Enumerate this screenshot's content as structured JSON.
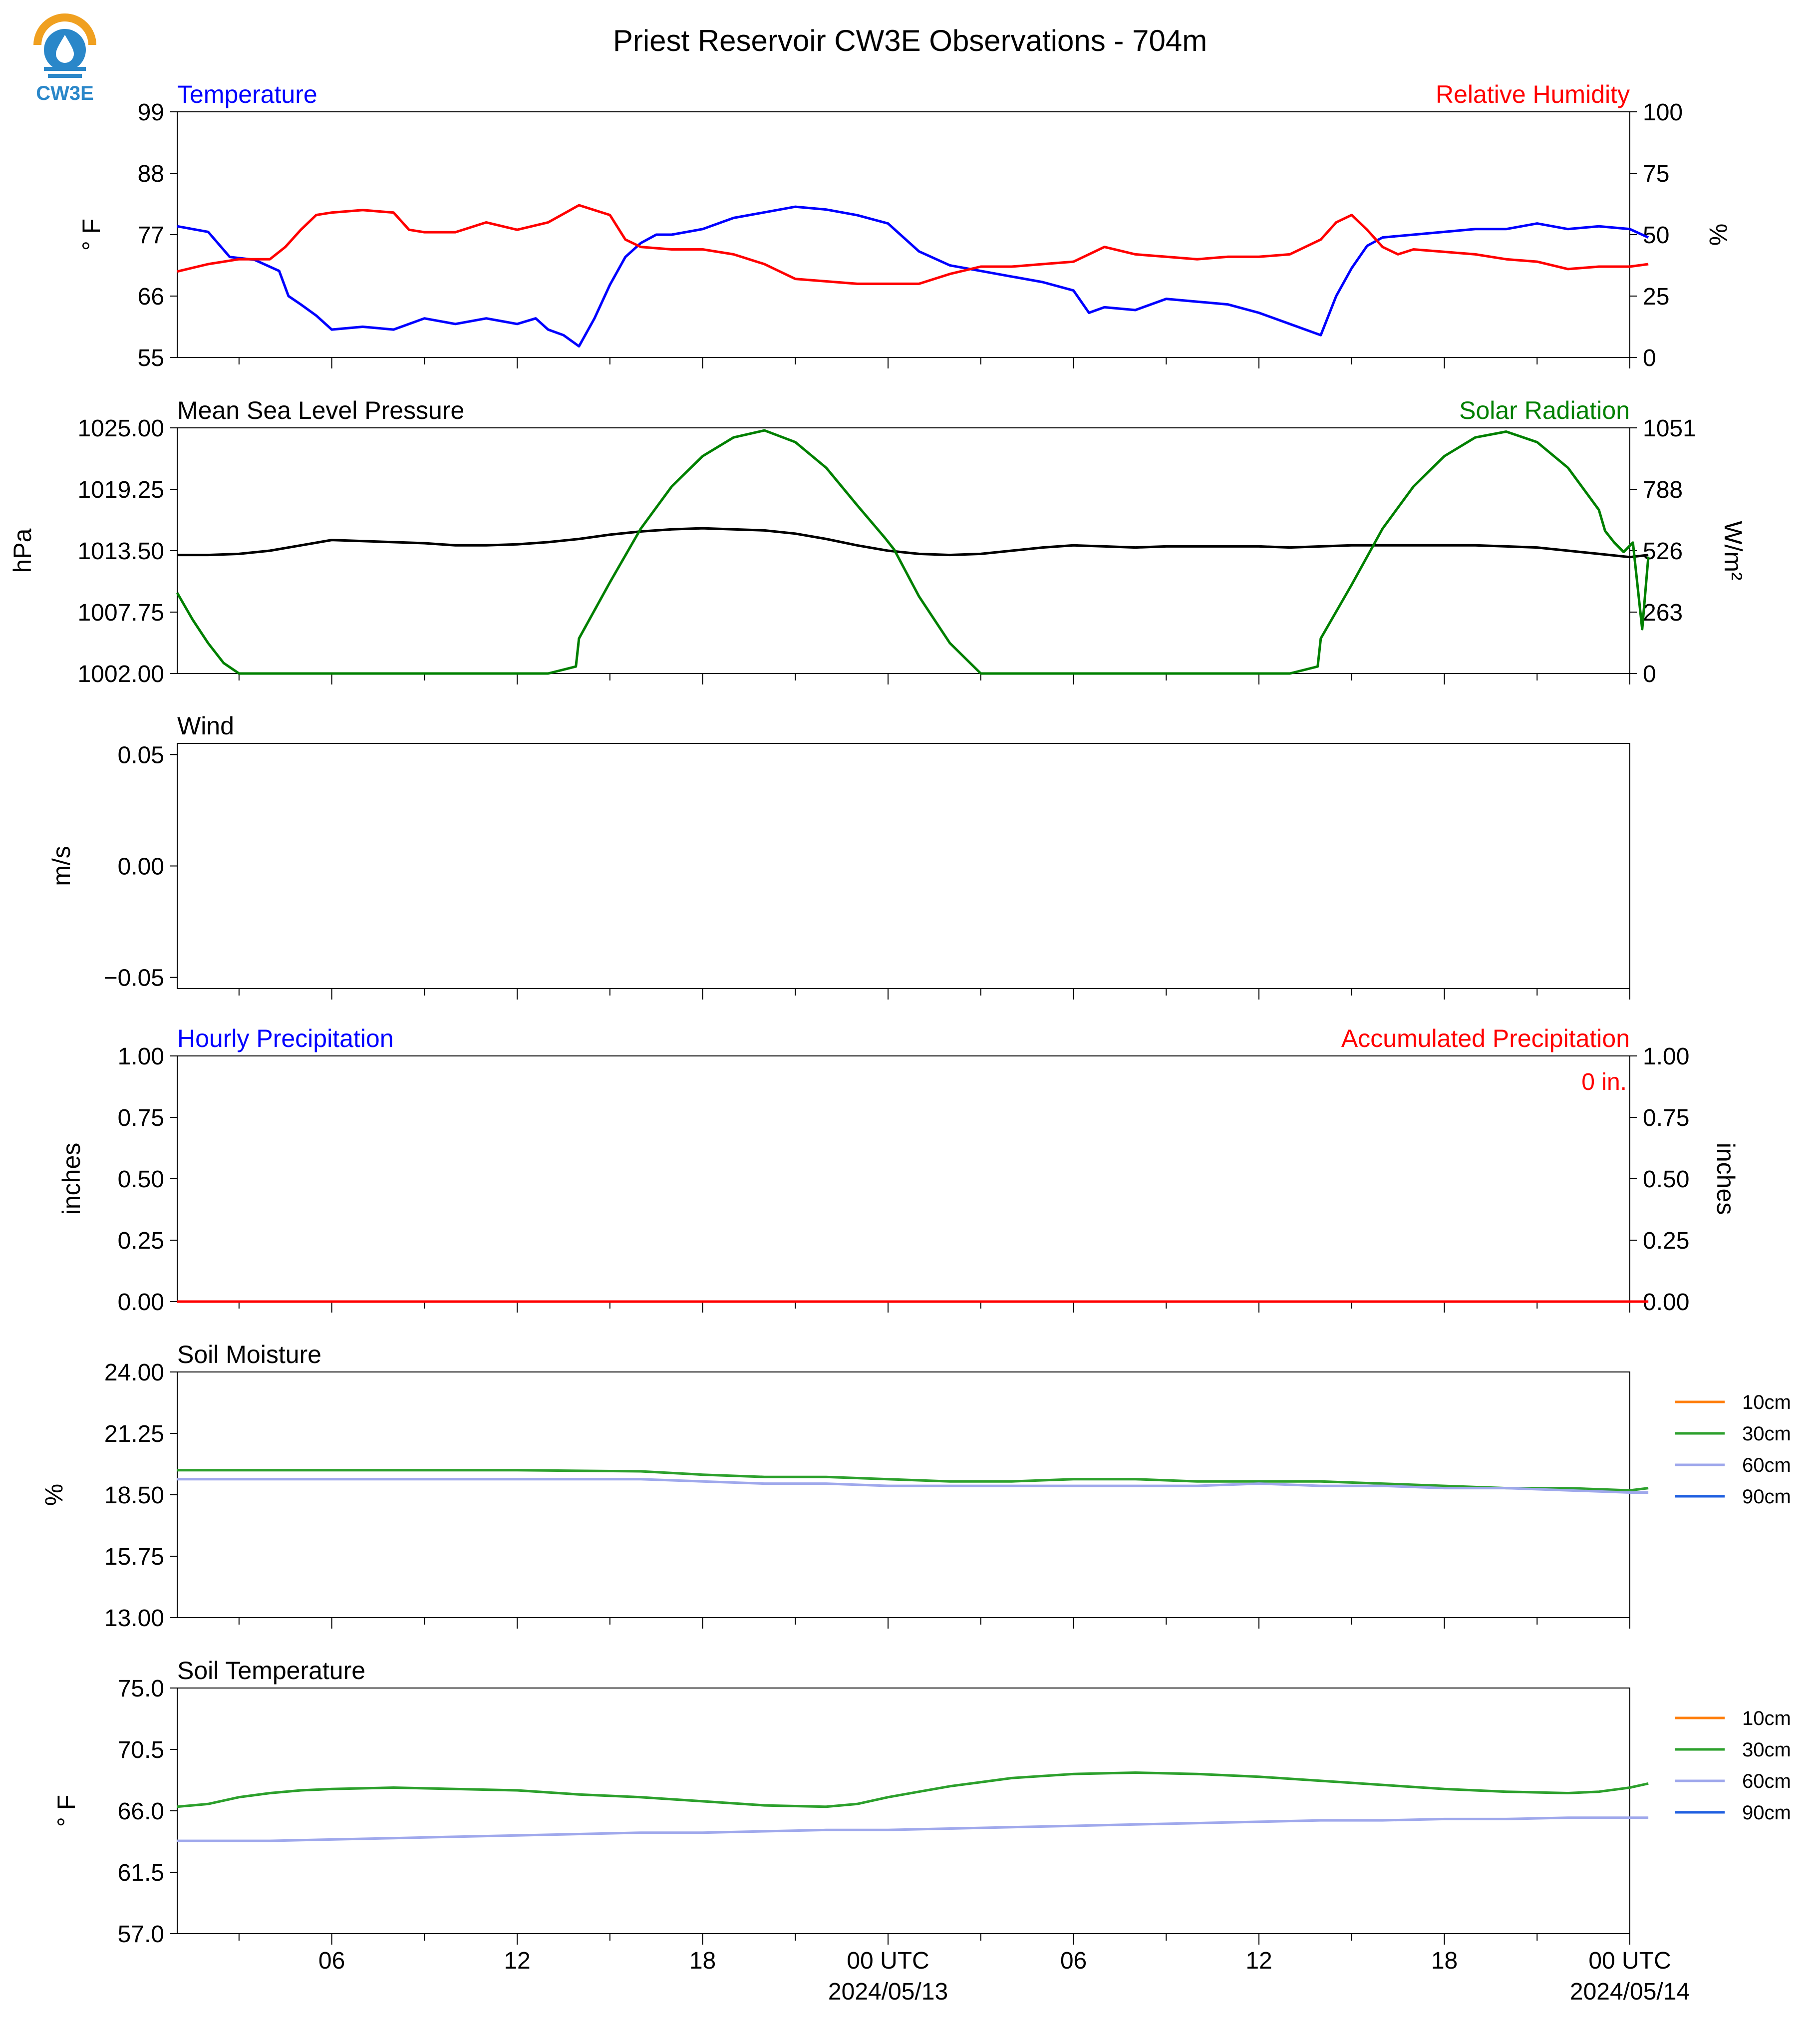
{
  "header": {
    "title": "Priest Reservoir CW3E Observations - 704m",
    "logo_text": "CW3E"
  },
  "colors": {
    "temperature": "#0000ff",
    "humidity": "#ff0000",
    "pressure": "#000000",
    "solar": "#008000",
    "soil_10cm": "#ff7f0e",
    "soil_30cm": "#2ca02c",
    "soil_60cm": "#9fa8ec",
    "soil_90cm": "#1f5fe0",
    "logo_orange": "#f0a020",
    "logo_blue": "#2a87c9"
  },
  "x_axis": {
    "hour_ticks": [
      6,
      12,
      18,
      24,
      30,
      36,
      42,
      48
    ],
    "tick_labels": [
      "06",
      "12",
      "18",
      "00 UTC",
      "06",
      "12",
      "18",
      "00 UTC"
    ],
    "date_labels": [
      "2024/05/13",
      "2024/05/14"
    ],
    "range_hours": [
      1,
      48
    ]
  },
  "chart_data": [
    {
      "type": "line",
      "title_left": "Temperature",
      "title_right": "Relative Humidity",
      "ylabel_left": "° F",
      "ylabel_right": "%",
      "ylim_left": [
        55,
        99
      ],
      "ylim_right": [
        0,
        100
      ],
      "yticks_left": [
        "99",
        "88",
        "77",
        "66",
        "55"
      ],
      "yticks_right": [
        "100",
        "75",
        "50",
        "25",
        "0"
      ],
      "series": [
        {
          "axis": "left",
          "x": [
            1,
            2,
            2.7,
            3.5,
            4.3,
            4.6,
            5,
            5.5,
            6,
            7,
            8,
            9,
            10,
            11,
            12,
            12.6,
            13,
            13.5,
            14,
            14.5,
            15,
            15.5,
            16,
            16.5,
            17,
            18,
            19,
            20,
            21,
            22,
            23,
            24,
            25,
            26,
            27,
            28,
            29,
            30,
            30.5,
            31,
            32,
            33,
            34,
            35,
            36,
            37,
            38,
            38.5,
            39,
            39.5,
            40,
            41,
            42,
            43,
            44,
            45,
            46,
            47,
            48,
            48.6
          ],
          "y": [
            78.5,
            77.5,
            73,
            72.5,
            70.5,
            66,
            64.5,
            62.5,
            60,
            60.5,
            60,
            62,
            61,
            62,
            61,
            62,
            60,
            59,
            57,
            62,
            68,
            73,
            75.5,
            77,
            77,
            78,
            80,
            81,
            82,
            81.5,
            80.5,
            79,
            74,
            71.5,
            70.5,
            69.5,
            68.5,
            67,
            63,
            64,
            63.5,
            65.5,
            65,
            64.5,
            63,
            61,
            59,
            66,
            71,
            75,
            76.5,
            77,
            77.5,
            78,
            78,
            79,
            78,
            78.5,
            78,
            76.5
          ]
        },
        {
          "axis": "right",
          "x": [
            1,
            2,
            3,
            4,
            4.5,
            5,
            5.5,
            6,
            7,
            8,
            8.5,
            9,
            10,
            11,
            12,
            13,
            14,
            15,
            15.5,
            16,
            17,
            18,
            19,
            20,
            21,
            22,
            23,
            24,
            25,
            26,
            27,
            28,
            29,
            30,
            30.5,
            31,
            32,
            33,
            34,
            35,
            36,
            37,
            38,
            38.5,
            39,
            39.5,
            40,
            40.5,
            41,
            42,
            43,
            44,
            45,
            46,
            47,
            48,
            48.6
          ],
          "y": [
            35,
            38,
            40,
            40,
            45,
            52,
            58,
            59,
            60,
            59,
            52,
            51,
            51,
            55,
            52,
            55,
            62,
            58,
            48,
            45,
            44,
            44,
            42,
            38,
            32,
            31,
            30,
            30,
            30,
            34,
            37,
            37,
            38,
            39,
            42,
            45,
            42,
            41,
            40,
            41,
            41,
            42,
            48,
            55,
            58,
            52,
            45,
            42,
            44,
            43,
            42,
            40,
            39,
            36,
            37,
            37,
            38
          ]
        }
      ]
    },
    {
      "type": "line",
      "title_left": "Mean Sea Level Pressure",
      "title_right": "Solar Radiation",
      "ylabel_left": "hPa",
      "ylabel_right": "W/m²",
      "ylim_left": [
        1002.0,
        1025.0
      ],
      "ylim_right": [
        0,
        1051
      ],
      "yticks_left": [
        "1025.00",
        "1019.25",
        "1013.50",
        "1007.75",
        "1002.00"
      ],
      "yticks_right": [
        "1051",
        "788",
        "526",
        "263",
        "0"
      ],
      "series": [
        {
          "axis": "left",
          "x": [
            1,
            2,
            3,
            4,
            5,
            6,
            7,
            8,
            9,
            10,
            11,
            12,
            13,
            14,
            15,
            16,
            17,
            18,
            19,
            20,
            21,
            22,
            23,
            24,
            25,
            26,
            27,
            28,
            29,
            30,
            31,
            32,
            33,
            34,
            35,
            36,
            37,
            38,
            39,
            40,
            41,
            42,
            43,
            44,
            45,
            46,
            47,
            48,
            48.6
          ],
          "y": [
            1013.1,
            1013.1,
            1013.2,
            1013.5,
            1014.0,
            1014.5,
            1014.4,
            1014.3,
            1014.2,
            1014.0,
            1014.0,
            1014.1,
            1014.3,
            1014.6,
            1015.0,
            1015.3,
            1015.5,
            1015.6,
            1015.5,
            1015.4,
            1015.1,
            1014.6,
            1014.0,
            1013.5,
            1013.2,
            1013.1,
            1013.2,
            1013.5,
            1013.8,
            1014.0,
            1013.9,
            1013.8,
            1013.9,
            1013.9,
            1013.9,
            1013.9,
            1013.8,
            1013.9,
            1014.0,
            1014.0,
            1014.0,
            1014.0,
            1014.0,
            1013.9,
            1013.8,
            1013.5,
            1013.2,
            1012.9,
            1013.1
          ]
        },
        {
          "axis": "right",
          "x": [
            1,
            1.5,
            2,
            2.5,
            3,
            4,
            6,
            8,
            10,
            12,
            13,
            13.9,
            14,
            15,
            16,
            17,
            18,
            19,
            20,
            21,
            22,
            23,
            23.9,
            24.2,
            25,
            26,
            27,
            28,
            29,
            30,
            32,
            34,
            36,
            37,
            37.9,
            38,
            39,
            40,
            41,
            42,
            43,
            44,
            45,
            46,
            47,
            47.2,
            47.5,
            47.8,
            48.1,
            48.4,
            48.6
          ],
          "y": [
            345,
            230,
            130,
            45,
            0,
            0,
            0,
            0,
            0,
            0,
            0,
            30,
            150,
            390,
            620,
            800,
            930,
            1010,
            1040,
            990,
            880,
            720,
            580,
            530,
            330,
            130,
            0,
            0,
            0,
            0,
            0,
            0,
            0,
            0,
            30,
            150,
            380,
            620,
            800,
            930,
            1010,
            1035,
            990,
            880,
            700,
            610,
            560,
            520,
            560,
            190,
            500
          ]
        }
      ]
    },
    {
      "type": "line",
      "title_left": "Wind",
      "title_right": "",
      "ylabel_left": "m/s",
      "ylabel_right": "",
      "ylim_left": [
        -0.055,
        0.055
      ],
      "ylim_right": null,
      "yticks_left": [
        "0.05",
        "0.00",
        "−0.05"
      ],
      "yticks_right": [],
      "series": []
    },
    {
      "type": "line",
      "title_left": "Hourly Precipitation",
      "title_right": "Accumulated Precipitation",
      "ylabel_left": "inches",
      "ylabel_right": "inches",
      "ylim_left": [
        0,
        1
      ],
      "ylim_right": [
        0,
        1
      ],
      "yticks_left": [
        "1.00",
        "0.75",
        "0.50",
        "0.25",
        "0.00"
      ],
      "yticks_right": [
        "1.00",
        "0.75",
        "0.50",
        "0.25",
        "0.00"
      ],
      "annotation": "0 in.",
      "series": [
        {
          "axis": "left",
          "x": [
            1,
            48.6
          ],
          "y": [
            0,
            0
          ]
        },
        {
          "axis": "right",
          "x": [
            1,
            48.6
          ],
          "y": [
            0,
            0
          ]
        }
      ]
    },
    {
      "type": "line",
      "title_left": "Soil Moisture",
      "title_right": "",
      "ylabel_left": "%",
      "ylabel_right": "",
      "ylim_left": [
        13.0,
        24.0
      ],
      "ylim_right": null,
      "yticks_left": [
        "24.00",
        "21.25",
        "18.50",
        "15.75",
        "13.00"
      ],
      "yticks_right": [],
      "legend": [
        "10cm",
        "30cm",
        "60cm",
        "90cm"
      ],
      "series": [
        {
          "name": "30cm",
          "axis": "left",
          "x": [
            1,
            4,
            8,
            12,
            16,
            18,
            20,
            22,
            24,
            26,
            28,
            30,
            32,
            34,
            36,
            38,
            40,
            42,
            44,
            46,
            48,
            48.6
          ],
          "y": [
            19.6,
            19.6,
            19.6,
            19.6,
            19.55,
            19.4,
            19.3,
            19.3,
            19.2,
            19.1,
            19.1,
            19.2,
            19.2,
            19.1,
            19.1,
            19.1,
            19.0,
            18.9,
            18.8,
            18.8,
            18.7,
            18.8
          ]
        },
        {
          "name": "60cm",
          "axis": "left",
          "x": [
            1,
            4,
            8,
            12,
            16,
            18,
            20,
            22,
            24,
            26,
            28,
            30,
            32,
            34,
            36,
            38,
            40,
            42,
            44,
            46,
            48,
            48.6
          ],
          "y": [
            19.2,
            19.2,
            19.2,
            19.2,
            19.2,
            19.1,
            19.0,
            19.0,
            18.9,
            18.9,
            18.9,
            18.9,
            18.9,
            18.9,
            19.0,
            18.9,
            18.9,
            18.8,
            18.8,
            18.7,
            18.6,
            18.6
          ]
        }
      ]
    },
    {
      "type": "line",
      "title_left": "Soil Temperature",
      "title_right": "",
      "ylabel_left": "° F",
      "ylabel_right": "",
      "ylim_left": [
        57.0,
        75.0
      ],
      "ylim_right": null,
      "yticks_left": [
        "75.0",
        "70.5",
        "66.0",
        "61.5",
        "57.0"
      ],
      "yticks_right": [],
      "legend": [
        "10cm",
        "30cm",
        "60cm",
        "90cm"
      ],
      "series": [
        {
          "name": "30cm",
          "axis": "left",
          "x": [
            1,
            2,
            3,
            4,
            5,
            6,
            8,
            10,
            12,
            14,
            16,
            18,
            20,
            22,
            23,
            24,
            25,
            26,
            27,
            28,
            30,
            32,
            34,
            36,
            38,
            40,
            42,
            44,
            46,
            47,
            48,
            48.6
          ],
          "y": [
            66.3,
            66.5,
            67.0,
            67.3,
            67.5,
            67.6,
            67.7,
            67.6,
            67.5,
            67.2,
            67.0,
            66.7,
            66.4,
            66.3,
            66.5,
            67.0,
            67.4,
            67.8,
            68.1,
            68.4,
            68.7,
            68.8,
            68.7,
            68.5,
            68.2,
            67.9,
            67.6,
            67.4,
            67.3,
            67.4,
            67.7,
            68.0
          ]
        },
        {
          "name": "60cm",
          "axis": "left",
          "x": [
            1,
            4,
            6,
            8,
            10,
            12,
            14,
            16,
            18,
            20,
            22,
            24,
            26,
            28,
            30,
            32,
            34,
            36,
            38,
            40,
            42,
            44,
            46,
            48,
            48.6
          ],
          "y": [
            63.8,
            63.8,
            63.9,
            64.0,
            64.1,
            64.2,
            64.3,
            64.4,
            64.4,
            64.5,
            64.6,
            64.6,
            64.7,
            64.8,
            64.9,
            65.0,
            65.1,
            65.2,
            65.3,
            65.3,
            65.4,
            65.4,
            65.5,
            65.5,
            65.5
          ]
        }
      ]
    }
  ]
}
